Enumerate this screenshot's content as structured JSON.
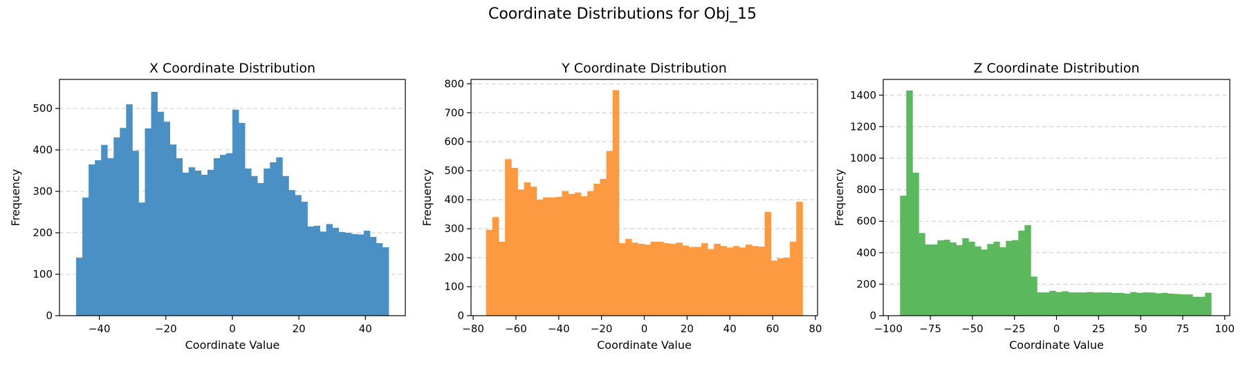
{
  "figure": {
    "title": "Coordinate Distributions for Obj_15"
  },
  "chart_data": [
    {
      "type": "bar",
      "title": "X Coordinate Distribution",
      "xlabel": "Coordinate Value",
      "ylabel": "Frequency",
      "color": "#4a90c4",
      "xlim": [
        -52,
        52
      ],
      "ylim": [
        0,
        570
      ],
      "xticks": [
        -40,
        -20,
        0,
        20,
        40
      ],
      "yticks": [
        0,
        100,
        200,
        300,
        400,
        500
      ],
      "grid": "y-dashed",
      "bins": {
        "start": -47,
        "width": 1.88
      },
      "values": [
        140,
        285,
        365,
        375,
        412,
        380,
        430,
        453,
        510,
        398,
        273,
        452,
        540,
        492,
        468,
        413,
        380,
        345,
        358,
        350,
        340,
        352,
        380,
        388,
        392,
        497,
        465,
        355,
        337,
        320,
        355,
        370,
        382,
        337,
        303,
        291,
        275,
        215,
        217,
        203,
        221,
        212,
        202,
        200,
        197,
        196,
        205,
        190,
        175,
        165
      ]
    },
    {
      "type": "bar",
      "title": "Y Coordinate Distribution",
      "xlabel": "Coordinate Value",
      "ylabel": "Frequency",
      "color": "#fd9940",
      "xlim": [
        -81,
        81
      ],
      "ylim": [
        0,
        815
      ],
      "xticks": [
        -80,
        -60,
        -40,
        -20,
        0,
        20,
        40,
        60,
        80
      ],
      "yticks": [
        0,
        100,
        200,
        300,
        400,
        500,
        600,
        700,
        800
      ],
      "grid": "y-dashed",
      "bins": {
        "start": -74,
        "width": 2.96
      },
      "values": [
        296,
        340,
        255,
        540,
        510,
        435,
        460,
        445,
        400,
        408,
        408,
        410,
        430,
        420,
        425,
        412,
        430,
        455,
        472,
        568,
        778,
        250,
        265,
        252,
        248,
        245,
        255,
        255,
        250,
        248,
        252,
        242,
        237,
        237,
        250,
        230,
        248,
        240,
        235,
        240,
        235,
        245,
        240,
        238,
        358,
        190,
        198,
        200,
        255,
        393
      ]
    },
    {
      "type": "bar",
      "title": "Z Coordinate Distribution",
      "xlabel": "Coordinate Value",
      "ylabel": "Frequency",
      "color": "#5cb85c",
      "xlim": [
        -103,
        103
      ],
      "ylim": [
        0,
        1500
      ],
      "xticks": [
        -100,
        -75,
        -50,
        -25,
        0,
        25,
        50,
        75,
        100
      ],
      "yticks": [
        0,
        200,
        400,
        600,
        800,
        1000,
        1200,
        1400
      ],
      "grid": "y-dashed",
      "bins": {
        "start": -93,
        "width": 3.7
      },
      "values": [
        762,
        1430,
        908,
        525,
        452,
        452,
        478,
        482,
        465,
        448,
        492,
        470,
        440,
        420,
        455,
        470,
        435,
        475,
        480,
        540,
        575,
        248,
        148,
        148,
        158,
        150,
        155,
        148,
        148,
        148,
        150,
        147,
        148,
        148,
        145,
        145,
        140,
        150,
        145,
        148,
        147,
        142,
        145,
        140,
        138,
        135,
        135,
        120,
        120,
        145
      ]
    }
  ]
}
